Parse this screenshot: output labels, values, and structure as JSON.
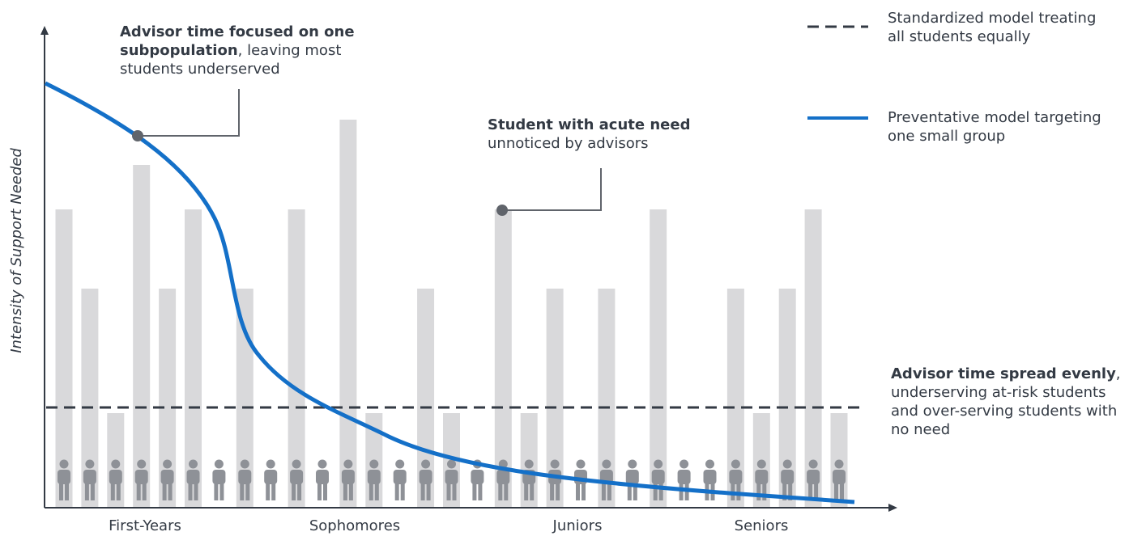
{
  "diagram": {
    "y_axis_label": "Intensity of Support Needed",
    "x_groups": [
      "First-Years",
      "Sophomores",
      "Juniors",
      "Seniors"
    ],
    "callouts": {
      "top_left": {
        "bold": "Advisor time focused on one subpopulation",
        "rest": ", leaving most students underserved"
      },
      "acute": {
        "bold": "Student with acute need",
        "rest": " unnoticed by advisors"
      },
      "right": {
        "bold": "Advisor time spread evenly",
        "rest": ", underserving at-risk students  and over-serving students with no need"
      }
    },
    "legend": [
      {
        "style": "dashed",
        "color": "#333a44",
        "label": "Standardized model treating all students equally"
      },
      {
        "style": "solid",
        "color": "#1470c8",
        "label": "Preventative model targeting one small group"
      }
    ],
    "student_need_levels": [
      "medium",
      "low-medium",
      "low",
      "high",
      "low-medium",
      "medium",
      "none",
      "low-medium",
      "none",
      "medium",
      "none",
      "very high",
      "low",
      "none",
      "low-medium",
      "low",
      "none",
      "medium",
      "low",
      "low-medium",
      "none",
      "low-medium",
      "none",
      "medium",
      "none",
      "none",
      "low-medium",
      "low",
      "low-medium",
      "medium",
      "low"
    ],
    "colors": {
      "bar": "#d9d9db",
      "person": "#8e9197",
      "curve": "#1470c8",
      "dashed": "#333a44",
      "axis": "#333a44",
      "marker": "#60646b"
    }
  }
}
